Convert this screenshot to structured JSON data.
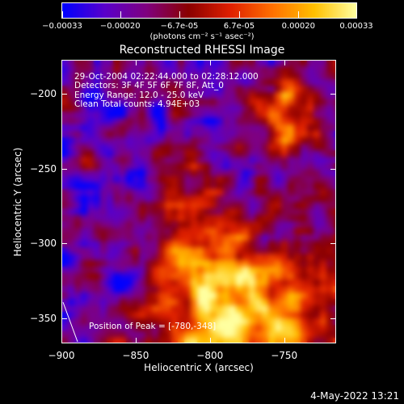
{
  "colorbar": {
    "ticks": [
      "-0.00033",
      "-0.00020",
      "-6.7e-05",
      "6.7e-05",
      "0.00020",
      "0.00033"
    ],
    "unit_label": "(photons cm⁻² s⁻¹ asec⁻²)",
    "colormap": [
      "#0000ff",
      "#5a00cc",
      "#800080",
      "#8b0000",
      "#e02000",
      "#ff7000",
      "#ffc000",
      "#ffffa0"
    ]
  },
  "title": "Reconstructed RHESSI Image",
  "info": {
    "time_range": "29-Oct-2004 02:22:44.000 to 02:28:12.000",
    "detectors": "Detectors: 3F 4F 5F 6F 7F 8F, Att_0",
    "energy": "Energy Range: 12.0 - 25.0 keV",
    "clean": "Clean     Total counts: 4.94E+03"
  },
  "peak": "Position of Peak = [-780,-348]",
  "datestamp": "4-May-2022 13:21",
  "chart_data": {
    "type": "heatmap",
    "title": "Reconstructed RHESSI Image",
    "xlabel": "Heliocentric X (arcsec)",
    "ylabel": "Heliocentric Y (arcsec)",
    "xlim": [
      -900,
      -715
    ],
    "ylim": [
      -367,
      -177
    ],
    "x_ticks": [
      -900,
      -850,
      -800,
      -750
    ],
    "y_ticks": [
      -350,
      -300,
      -250,
      -200
    ],
    "x_tick_labels": [
      "−900",
      "−850",
      "−800",
      "−750"
    ],
    "y_tick_labels": [
      "−350",
      "−300",
      "−250",
      "−200"
    ],
    "color_range": [
      -0.00033,
      0.00033
    ],
    "peak_position": [
      -780,
      -348
    ]
  }
}
